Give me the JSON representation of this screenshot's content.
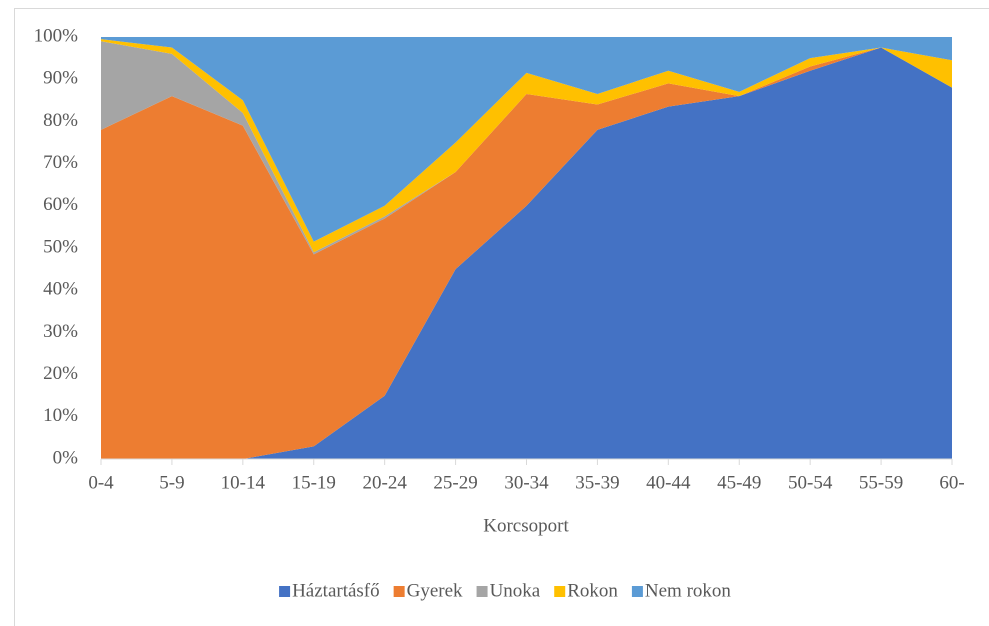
{
  "chart_data": {
    "type": "stacked_area_100",
    "x_label": "Korcsoport",
    "categories": [
      "0-4",
      "5-9",
      "10-14",
      "15-19",
      "20-24",
      "25-29",
      "30-34",
      "35-39",
      "40-44",
      "45-49",
      "50-54",
      "55-59",
      "60-"
    ],
    "series": [
      {
        "name": "Háztartásfő",
        "color": "#4472c4",
        "values": [
          0,
          0,
          0,
          3,
          15,
          45,
          60,
          78,
          83.5,
          86,
          92,
          97.5,
          88
        ]
      },
      {
        "name": "Gyerek",
        "color": "#ed7d31",
        "values": [
          78,
          86,
          79,
          45.5,
          42,
          23,
          26.5,
          6,
          5.5,
          0,
          1,
          0,
          0
        ]
      },
      {
        "name": "Unoka",
        "color": "#a5a5a5",
        "values": [
          21,
          10,
          3,
          0.5,
          0.5,
          0,
          0,
          0,
          0,
          0,
          0,
          0,
          0
        ]
      },
      {
        "name": "Rokon",
        "color": "#ffc000",
        "values": [
          0.5,
          1.5,
          3,
          2.5,
          2.5,
          7,
          5,
          2.5,
          3,
          1,
          2,
          0,
          6.5
        ]
      },
      {
        "name": "Nem rokon",
        "color": "#5b9bd5",
        "values": [
          0.5,
          2.5,
          15,
          48.5,
          40,
          25,
          8.5,
          13.5,
          8,
          13,
          5,
          2.5,
          5.5
        ]
      }
    ],
    "ylim": [
      0,
      100
    ],
    "yticks": [
      {
        "value": 0,
        "label": "0%"
      },
      {
        "value": 10,
        "label": "10%"
      },
      {
        "value": 20,
        "label": "20%"
      },
      {
        "value": 30,
        "label": "30%"
      },
      {
        "value": 40,
        "label": "40%"
      },
      {
        "value": 50,
        "label": "50%"
      },
      {
        "value": 60,
        "label": "60%"
      },
      {
        "value": 70,
        "label": "70%"
      },
      {
        "value": 80,
        "label": "80%"
      },
      {
        "value": 90,
        "label": "90%"
      },
      {
        "value": 100,
        "label": "100%"
      }
    ],
    "legend": "bottom"
  }
}
